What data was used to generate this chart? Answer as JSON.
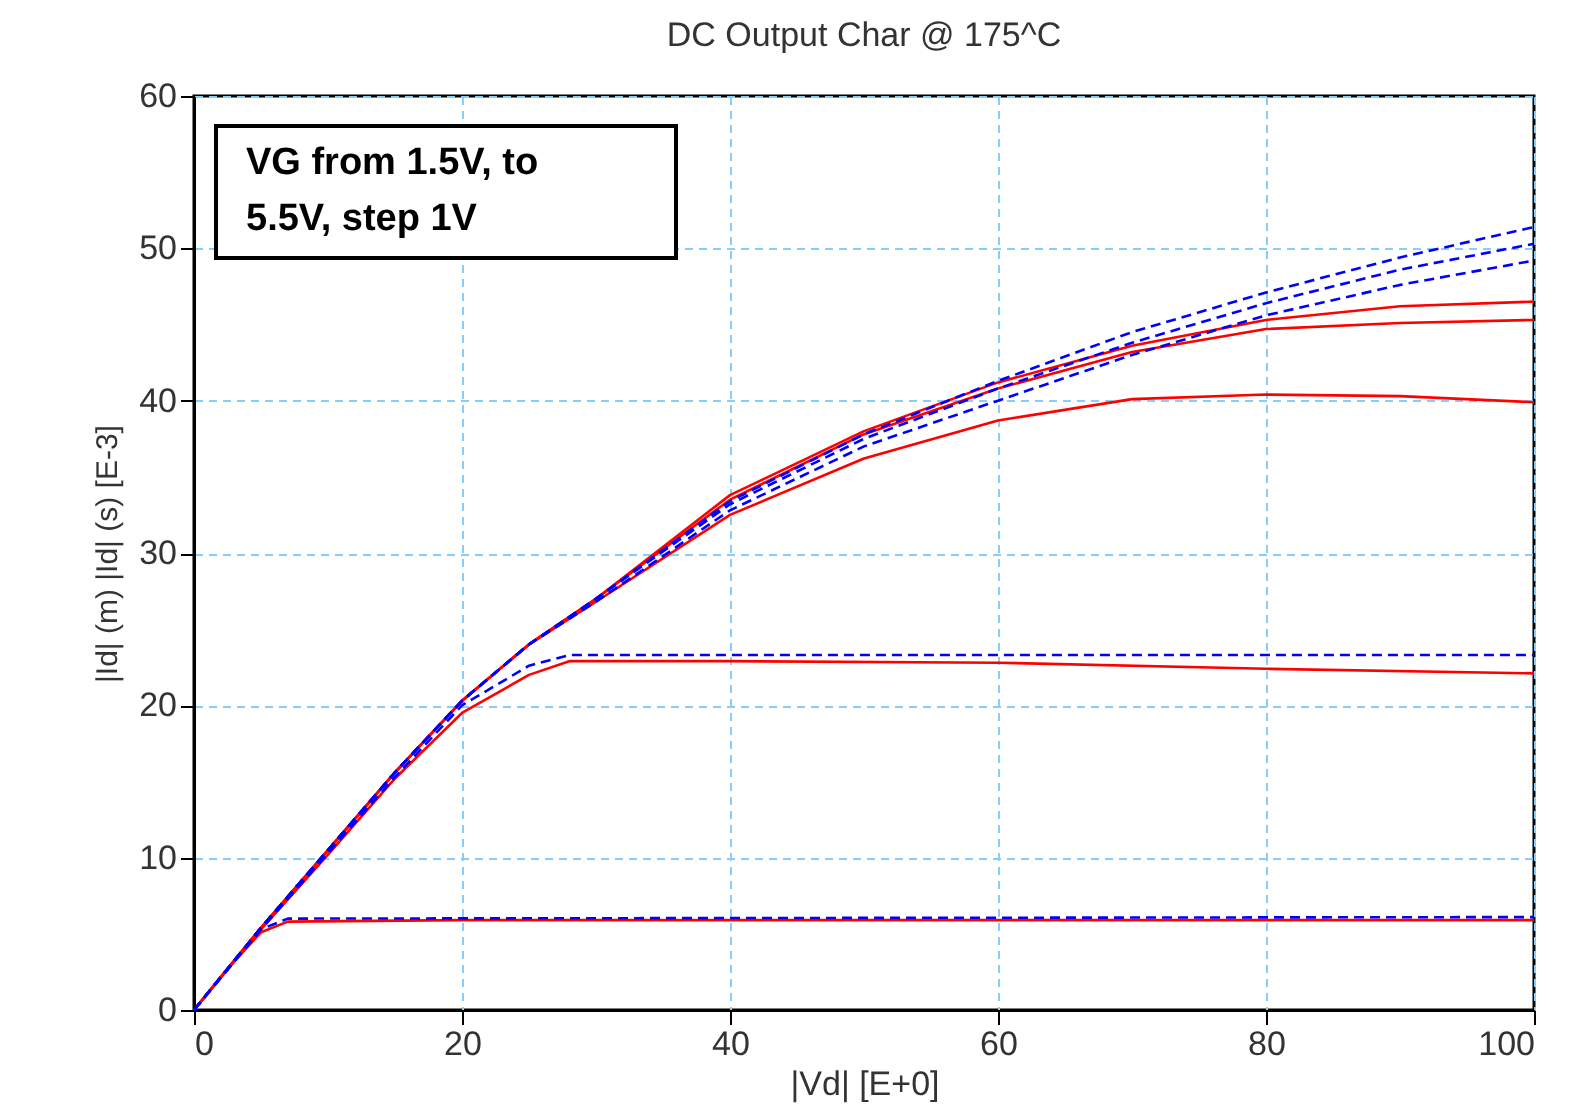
{
  "chart_data": {
    "type": "line",
    "title": "DC Output Char @ 175^C",
    "xlabel": "|Vd|  [E+0]",
    "ylabel": "|Id| (m)  |Id| (s)  [E-3]",
    "annotations": [
      "VG from 1.5V, to 5.5V, step 1V"
    ],
    "xlim": [
      0,
      100
    ],
    "ylim": [
      0,
      60
    ],
    "xticks": [
      0,
      20,
      40,
      60,
      80,
      100
    ],
    "yticks": [
      0,
      10,
      20,
      30,
      40,
      50,
      60
    ],
    "grid": true,
    "marker": "none",
    "series": [
      {
        "color": "#ff0000",
        "line_style": "solid",
        "x": [
          0,
          2.5,
          5,
          7,
          20,
          100
        ],
        "values": [
          0,
          2.7,
          5.1,
          5.8,
          5.9,
          5.9
        ]
      },
      {
        "color": "#ff0000",
        "line_style": "solid",
        "x": [
          0,
          5,
          10,
          15,
          20,
          25,
          28,
          40,
          60,
          80,
          100
        ],
        "values": [
          0,
          5.3,
          10.2,
          15.2,
          19.5,
          22,
          22.9,
          22.9,
          22.8,
          22.4,
          22.1
        ]
      },
      {
        "color": "#ff0000",
        "line_style": "solid",
        "x": [
          0,
          5,
          10,
          15,
          20,
          25,
          30,
          40,
          50,
          60,
          70,
          80,
          90,
          100
        ],
        "values": [
          0,
          5.4,
          10.5,
          15.6,
          20.3,
          24,
          26.8,
          32.5,
          36.2,
          38.7,
          40.1,
          40.4,
          40.3,
          39.9
        ]
      },
      {
        "color": "#ff0000",
        "line_style": "solid",
        "x": [
          0,
          5,
          10,
          15,
          20,
          25,
          30,
          40,
          50,
          60,
          70,
          80,
          90,
          100
        ],
        "values": [
          0,
          5.4,
          10.5,
          15.6,
          20.3,
          24,
          27,
          33.5,
          37.8,
          40.8,
          43.2,
          44.7,
          45.1,
          45.3
        ]
      },
      {
        "color": "#ff0000",
        "line_style": "solid",
        "x": [
          0,
          5,
          10,
          15,
          20,
          25,
          30,
          40,
          50,
          60,
          70,
          80,
          90,
          100
        ],
        "values": [
          0,
          5.4,
          10.5,
          15.6,
          20.3,
          24,
          27,
          33.8,
          38,
          41.2,
          43.6,
          45.3,
          46.2,
          46.5
        ]
      },
      {
        "color": "#0000ff",
        "line_style": "dashed",
        "x": [
          0,
          5,
          7,
          100
        ],
        "values": [
          0,
          5.3,
          6,
          6.1
        ]
      },
      {
        "color": "#0000ff",
        "line_style": "dashed",
        "x": [
          0,
          5,
          10,
          15,
          20,
          25,
          28,
          100
        ],
        "values": [
          0,
          5.3,
          10.3,
          15.3,
          20,
          22.6,
          23.3,
          23.3
        ]
      },
      {
        "color": "#0000ff",
        "line_style": "dashed",
        "x": [
          0,
          5,
          10,
          15,
          20,
          25,
          30,
          40,
          50,
          60,
          70,
          80,
          90,
          100
        ],
        "values": [
          0,
          5.4,
          10.5,
          15.6,
          20.3,
          24,
          26.8,
          32.8,
          37,
          40,
          43,
          45.6,
          47.6,
          49.2
        ]
      },
      {
        "color": "#0000ff",
        "line_style": "dashed",
        "x": [
          0,
          5,
          10,
          15,
          20,
          25,
          30,
          40,
          50,
          60,
          70,
          80,
          90,
          100
        ],
        "values": [
          0,
          5.4,
          10.5,
          15.6,
          20.3,
          24,
          27,
          33.2,
          37.5,
          40.8,
          43.8,
          46.4,
          48.6,
          50.3
        ]
      },
      {
        "color": "#0000ff",
        "line_style": "dashed",
        "x": [
          0,
          5,
          10,
          15,
          20,
          25,
          30,
          40,
          50,
          60,
          70,
          80,
          90,
          100
        ],
        "values": [
          0,
          5.4,
          10.5,
          15.6,
          20.3,
          24,
          27,
          33.4,
          37.8,
          41.3,
          44.5,
          47.1,
          49.4,
          51.4
        ]
      }
    ]
  }
}
